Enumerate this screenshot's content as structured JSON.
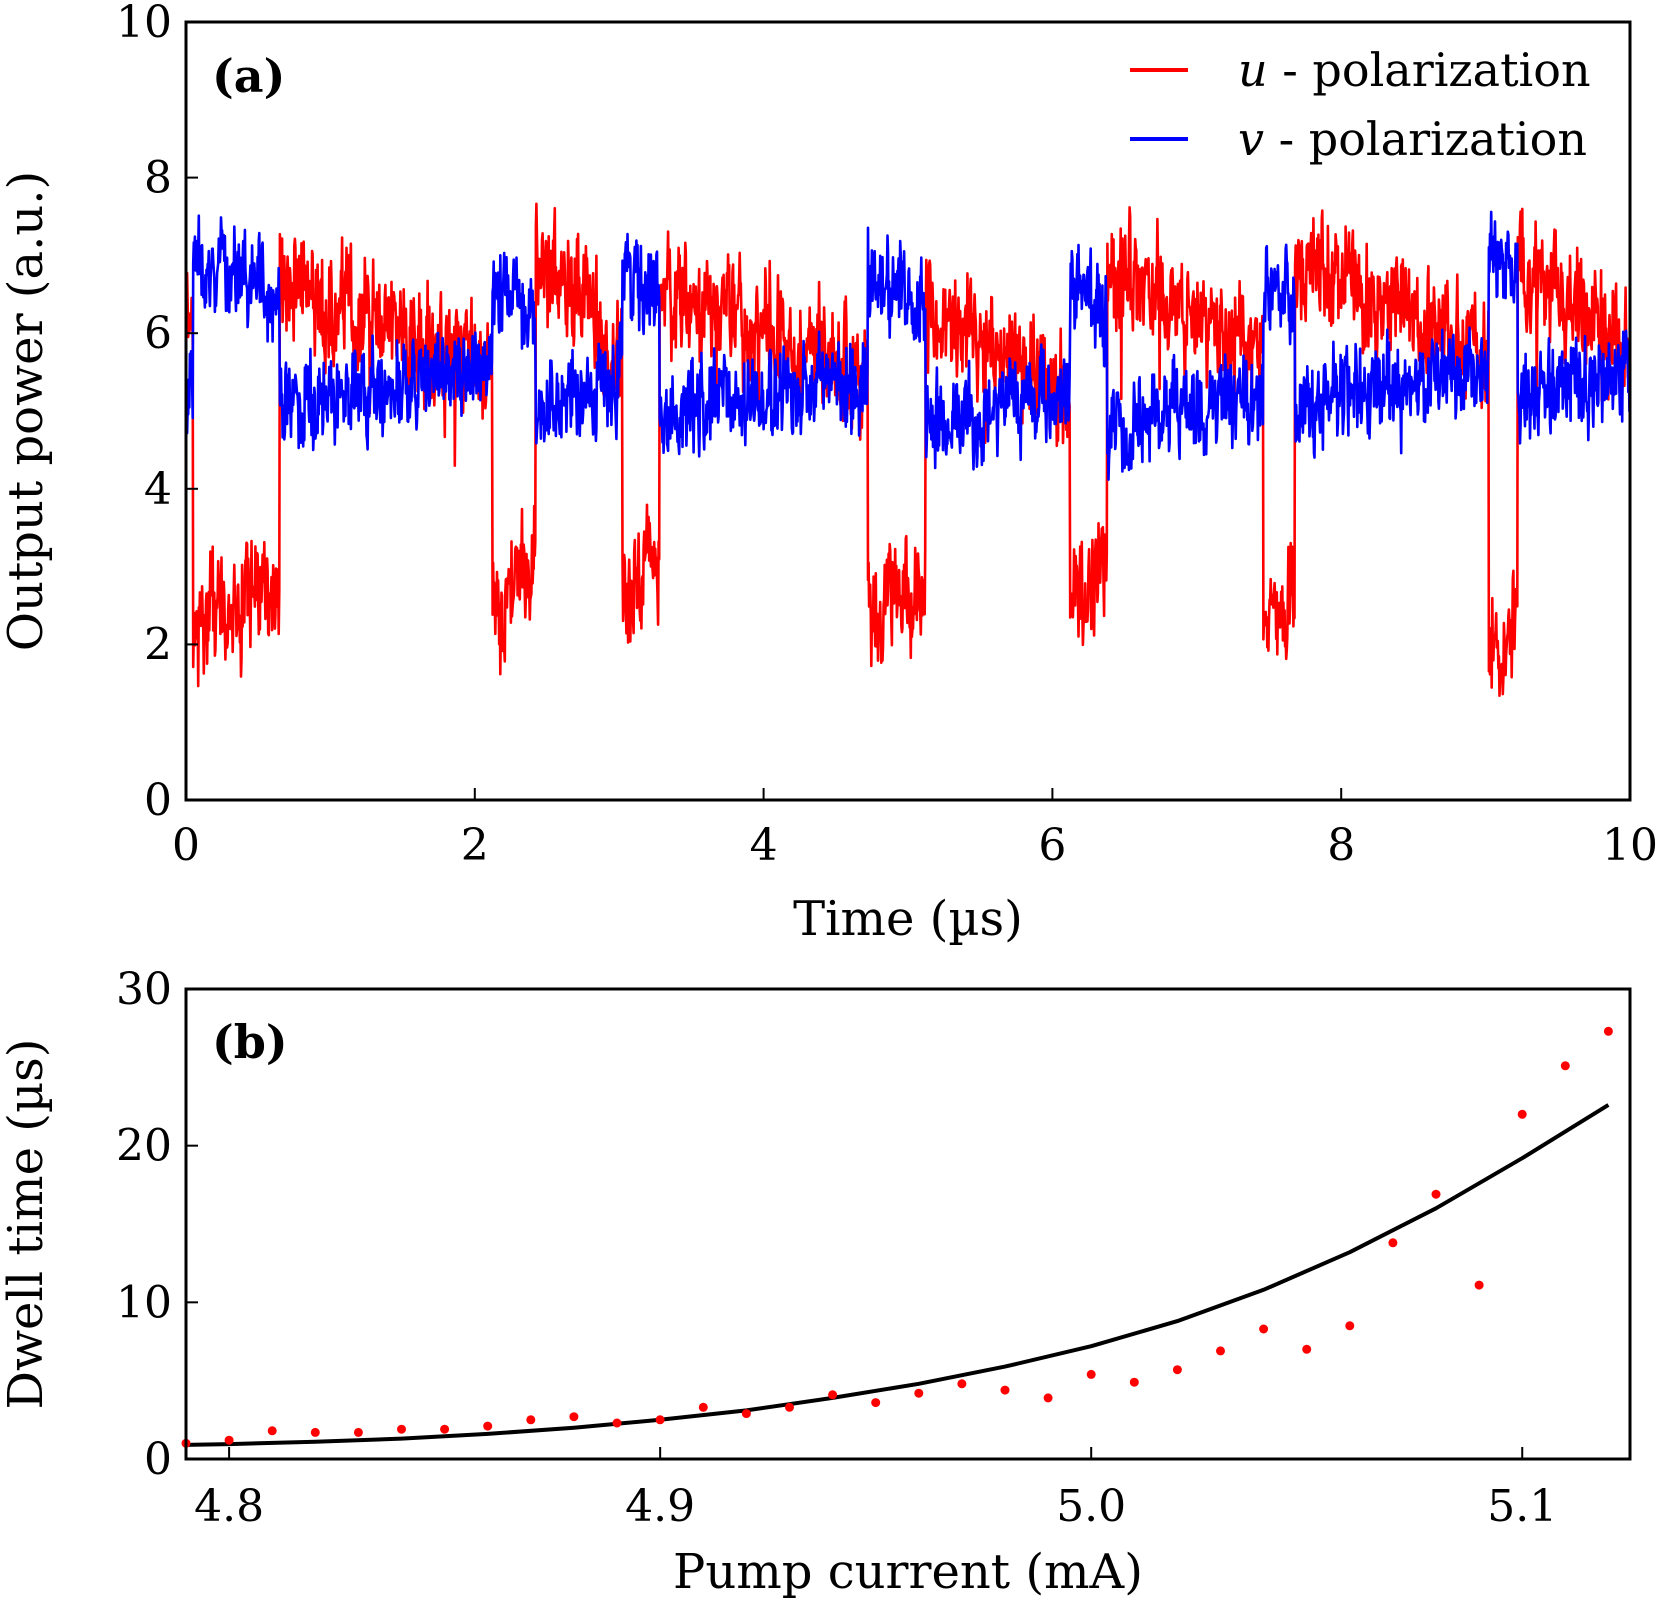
{
  "chart_data": [
    {
      "type": "line",
      "panel_label": "(a)",
      "xlabel": "Time (µs)",
      "ylabel": "Output power (a.u.)",
      "xlim": [
        0,
        10
      ],
      "ylim": [
        0,
        10
      ],
      "xticks": [
        "0",
        "2",
        "4",
        "6",
        "8",
        "10"
      ],
      "yticks": [
        "0",
        "2",
        "4",
        "6",
        "8",
        "10"
      ],
      "grid": false,
      "legend_position": "top-right",
      "legend": [
        {
          "symbol": "u",
          "text": " - polarization",
          "color": "#ff0000"
        },
        {
          "symbol": "v",
          "text": " - polarization",
          "color": "#0000ff"
        }
      ],
      "switch_times_us": [
        0.05,
        0.65,
        2.12,
        2.42,
        3.02,
        3.28,
        4.72,
        5.12,
        6.12,
        6.38,
        7.46,
        7.68,
        9.02,
        9.22
      ],
      "u_high_level": [
        6.3,
        5.9,
        6.2,
        5.8,
        5.6,
        6.1,
        6.2
      ],
      "u_low_level": [
        2.2,
        2.4,
        2.6,
        2.3,
        2.4,
        2.2,
        1.8
      ],
      "v_high_level": [
        6.9,
        6.6,
        6.8,
        6.7,
        6.5,
        6.7,
        7.0
      ],
      "v_low_level": [
        5.1,
        5.0,
        5.0,
        4.8,
        4.8,
        5.1,
        5.1
      ],
      "series": [
        {
          "name": "u - polarization",
          "color": "#ff0000"
        },
        {
          "name": "v - polarization",
          "color": "#0000ff"
        }
      ]
    },
    {
      "type": "scatter",
      "panel_label": "(b)",
      "xlabel": "Pump current (mA)",
      "ylabel": "Dwell time (µs)",
      "xlim": [
        4.79,
        5.125
      ],
      "ylim": [
        0,
        30
      ],
      "xticks": [
        "4.8",
        "4.9",
        "5.0",
        "5.1"
      ],
      "yticks": [
        "0",
        "10",
        "20",
        "30"
      ],
      "grid": false,
      "points": {
        "x": [
          4.79,
          4.8,
          4.81,
          4.82,
          4.83,
          4.84,
          4.85,
          4.86,
          4.87,
          4.88,
          4.89,
          4.9,
          4.91,
          4.92,
          4.93,
          4.94,
          4.95,
          4.96,
          4.97,
          4.98,
          4.99,
          5.0,
          5.01,
          5.02,
          5.03,
          5.04,
          5.05,
          5.06,
          5.07,
          5.08,
          5.09,
          5.1,
          5.11,
          5.12
        ],
        "y": [
          1.0,
          1.2,
          1.8,
          1.7,
          1.7,
          1.9,
          1.9,
          2.1,
          2.5,
          2.7,
          2.3,
          2.5,
          3.3,
          2.9,
          3.3,
          4.1,
          3.6,
          4.2,
          4.8,
          4.4,
          3.9,
          5.4,
          4.9,
          5.7,
          6.9,
          8.3,
          7.0,
          8.5,
          13.8,
          16.9,
          11.1,
          22.0,
          25.1,
          27.3
        ],
        "color": "#ff0000"
      },
      "fit": {
        "x": [
          4.79,
          4.8,
          4.82,
          4.84,
          4.86,
          4.88,
          4.9,
          4.92,
          4.94,
          4.96,
          4.98,
          5.0,
          5.02,
          5.04,
          5.06,
          5.08,
          5.1,
          5.12
        ],
        "y": [
          0.9,
          0.95,
          1.1,
          1.3,
          1.6,
          2.0,
          2.5,
          3.1,
          3.9,
          4.8,
          5.9,
          7.2,
          8.8,
          10.8,
          13.2,
          16.0,
          19.2,
          22.6
        ],
        "color": "#000000"
      }
    }
  ]
}
